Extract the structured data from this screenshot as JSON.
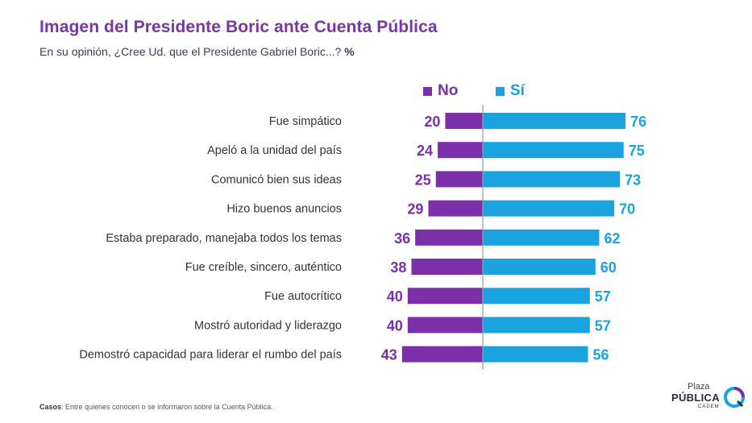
{
  "title": "Imagen del Presidente Boric ante Cuenta Pública",
  "subtitle": "En su opinión, ¿Cree Ud. que el Presidente Gabriel Boric...?",
  "subtitle_unit": "%",
  "footnote": {
    "label": "Casos",
    "text": ": Entre quienes conocen o se informaron sobre la Cuenta Pública."
  },
  "logo": {
    "line1": "Plaza",
    "line2": "PÚBLICA",
    "line3": "CADEM"
  },
  "colors": {
    "no": "#7b2fa8",
    "si": "#1aa3df",
    "divider": "#9a9aa8",
    "label": "#333333"
  },
  "chart_data": {
    "type": "bar",
    "orientation": "diverging-horizontal",
    "categories": [
      "Fue simpático",
      "Apeló a la unidad del país",
      "Comunicó bien sus ideas",
      "Hizo buenos anuncios",
      "Estaba preparado, manejaba todos los temas",
      "Fue creíble, sincero, auténtico",
      "Fue autocrítico",
      "Mostró autoridad y liderazgo",
      "Demostró capacidad para liderar el rumbo del país"
    ],
    "series": [
      {
        "name": "No",
        "values": [
          20,
          24,
          25,
          29,
          36,
          38,
          40,
          40,
          43
        ]
      },
      {
        "name": "Sí",
        "values": [
          76,
          75,
          73,
          70,
          62,
          60,
          57,
          57,
          56
        ]
      }
    ],
    "legend": "top"
  }
}
